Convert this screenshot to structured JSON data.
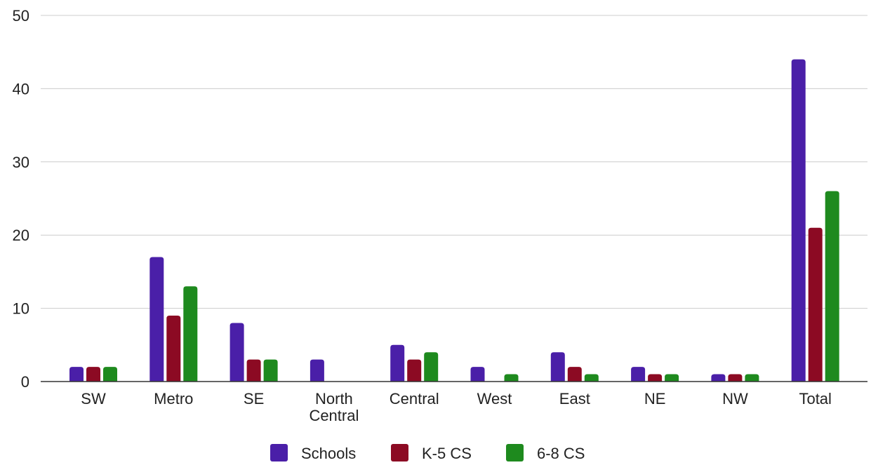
{
  "chart_data": {
    "type": "bar",
    "title": "",
    "xlabel": "",
    "ylabel": "",
    "ylim": [
      0,
      50
    ],
    "yticks": [
      0,
      10,
      20,
      30,
      40,
      50
    ],
    "grid": true,
    "legend_position": "bottom",
    "categories": [
      [
        "SW"
      ],
      [
        "Metro"
      ],
      [
        "SE"
      ],
      [
        "North",
        "Central"
      ],
      [
        "Central"
      ],
      [
        "West"
      ],
      [
        "East"
      ],
      [
        "NE"
      ],
      [
        "NW"
      ],
      [
        "Total"
      ]
    ],
    "series": [
      {
        "name": "Schools",
        "color": "#4a1fa8",
        "values": [
          2,
          17,
          8,
          3,
          5,
          2,
          4,
          2,
          1,
          44
        ]
      },
      {
        "name": "K-5 CS",
        "color": "#8c0a23",
        "values": [
          2,
          9,
          3,
          0,
          3,
          0,
          2,
          1,
          1,
          21
        ]
      },
      {
        "name": "6-8 CS",
        "color": "#1e8a1e",
        "values": [
          2,
          13,
          3,
          0,
          4,
          1,
          1,
          1,
          1,
          26
        ]
      }
    ]
  }
}
